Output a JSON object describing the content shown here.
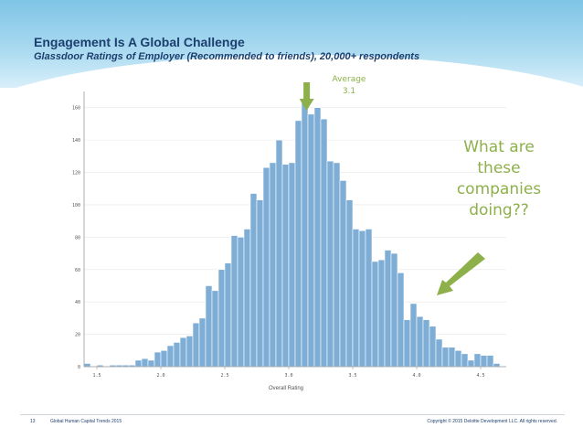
{
  "title": "Engagement Is A Global Challenge",
  "subtitle": "Glassdoor Ratings of Employer (Recommended to friends), 20,000+ respondents",
  "average_annotation": {
    "label": "Average",
    "value": "3.1",
    "x": 3.14
  },
  "callout": {
    "line1": "What are",
    "line2": "these",
    "line3": "companies",
    "line4": "doing??"
  },
  "colors": {
    "bar": "#7eadd6",
    "bar_edge": "#ffffff",
    "grid": "#e6e6e6",
    "axis": "#999999",
    "annotation": "#8db04a",
    "title": "#1c3f6e"
  },
  "footer": {
    "page": "13",
    "left": "Global Human Capital Trends 2015",
    "right": "Copyright © 2015 Deloitte Development LLC. All rights reserved."
  },
  "chart_data": {
    "type": "bar",
    "xlabel": "Overall Rating",
    "ylabel": "",
    "xlim": [
      1.4,
      4.7
    ],
    "ylim": [
      0,
      170
    ],
    "bin_width": 0.05,
    "xticks": [
      "1.5",
      "2.0",
      "2.5",
      "3.0",
      "3.5",
      "4.0",
      "4.5"
    ],
    "yticks": [
      "0",
      "20",
      "40",
      "60",
      "80",
      "100",
      "120",
      "140",
      "160"
    ],
    "x": [
      1.425,
      1.475,
      1.525,
      1.575,
      1.625,
      1.675,
      1.725,
      1.775,
      1.825,
      1.875,
      1.925,
      1.975,
      2.025,
      2.075,
      2.125,
      2.175,
      2.225,
      2.275,
      2.325,
      2.375,
      2.425,
      2.475,
      2.525,
      2.575,
      2.625,
      2.675,
      2.725,
      2.775,
      2.825,
      2.875,
      2.925,
      2.975,
      3.025,
      3.075,
      3.125,
      3.175,
      3.225,
      3.275,
      3.325,
      3.375,
      3.425,
      3.475,
      3.525,
      3.575,
      3.625,
      3.675,
      3.725,
      3.775,
      3.825,
      3.875,
      3.925,
      3.975,
      4.025,
      4.075,
      4.125,
      4.175,
      4.225,
      4.275,
      4.325,
      4.375,
      4.425,
      4.475,
      4.525,
      4.575,
      4.625
    ],
    "values": [
      2,
      0,
      1,
      0,
      1,
      1,
      1,
      1,
      4,
      5,
      4,
      9,
      10,
      13,
      15,
      18,
      19,
      27,
      30,
      50,
      47,
      60,
      64,
      81,
      80,
      85,
      107,
      103,
      123,
      126,
      140,
      125,
      126,
      152,
      164,
      156,
      160,
      153,
      127,
      126,
      115,
      103,
      85,
      84,
      85,
      65,
      66,
      72,
      70,
      58,
      29,
      39,
      31,
      29,
      25,
      17,
      12,
      12,
      10,
      8,
      4,
      8,
      7,
      7,
      2
    ]
  }
}
